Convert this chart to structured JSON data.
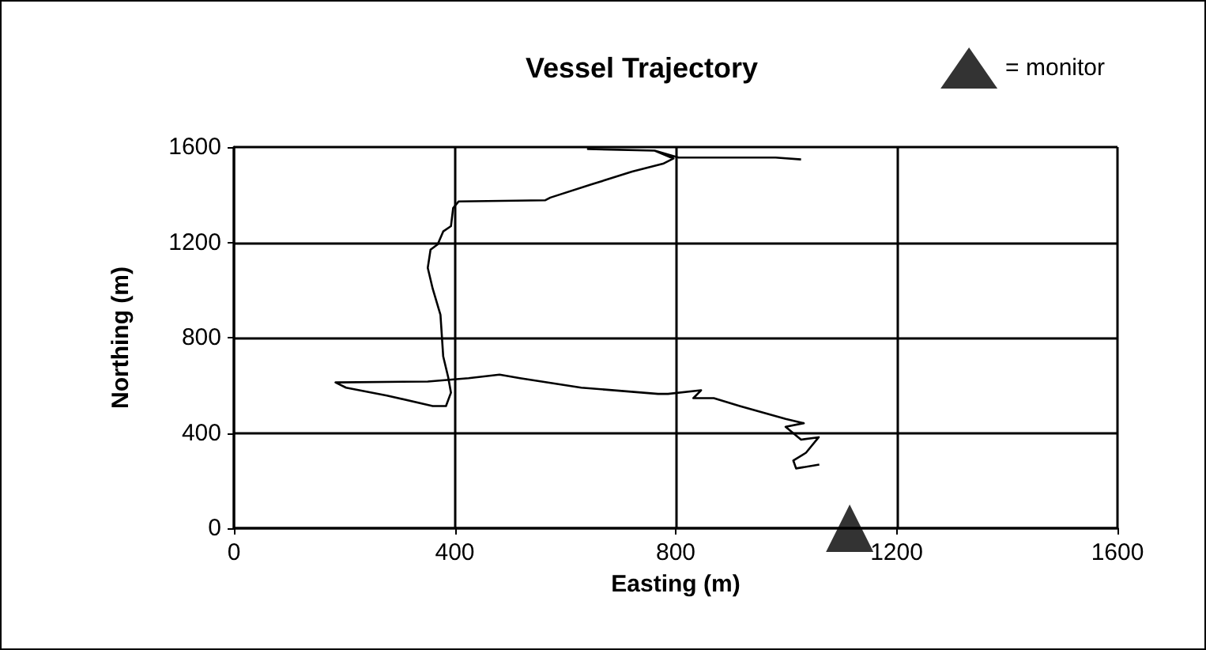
{
  "chart_data": {
    "type": "line",
    "title": "Vessel Trajectory",
    "xlabel": "Easting (m)",
    "ylabel": "Northing (m)",
    "xlim": [
      0,
      1600
    ],
    "xticks": [
      0,
      400,
      800,
      1200,
      1600
    ],
    "ylim": [
      0,
      1600
    ],
    "yticks": [
      0,
      400,
      800,
      1200,
      1600
    ],
    "grid": true,
    "legend": "top right",
    "line_style": "solid",
    "marker": "none",
    "series": [
      {
        "color": "#000000",
        "x": [
          1027,
          981,
          805,
          762,
          641,
          762,
          796,
          777,
          721,
          647,
          573,
          564,
          407,
          397,
          393,
          379,
          369,
          356,
          351,
          360,
          374,
          379,
          388,
          393,
          384,
          360,
          277,
          203,
          184,
          351,
          425,
          481,
          518,
          629,
          768,
          786,
          846,
          832,
          869,
          916,
          999,
          1032,
          999,
          1027,
          1059,
          1036,
          1013,
          1018,
          1060
        ],
        "values": [
          1548,
          1556,
          1556,
          1585,
          1592,
          1585,
          1552,
          1530,
          1497,
          1443,
          1388,
          1377,
          1372,
          1344,
          1268,
          1246,
          1192,
          1169,
          1093,
          1005,
          896,
          721,
          634,
          569,
          513,
          513,
          557,
          590,
          612,
          616,
          630,
          645,
          630,
          590,
          564,
          564,
          579,
          546,
          546,
          513,
          459,
          441,
          426,
          372,
          382,
          317,
          284,
          251,
          267
        ]
      },
      {
        "type": "scatter",
        "name": "= monitor",
        "color": "#000000",
        "marker": "triangle",
        "x": [
          1115
        ],
        "values": [
          0
        ]
      }
    ]
  }
}
